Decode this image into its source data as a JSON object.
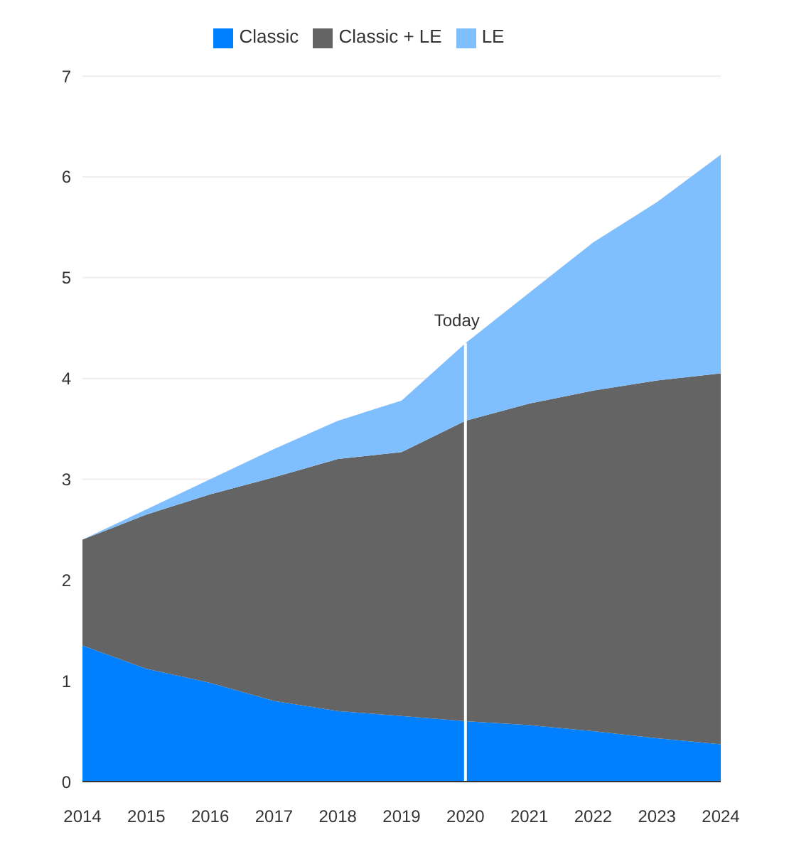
{
  "chart_data": {
    "type": "area",
    "stacked": true,
    "categories": [
      "2014",
      "2015",
      "2016",
      "2017",
      "2018",
      "2019",
      "2020",
      "2021",
      "2022",
      "2023",
      "2024"
    ],
    "series": [
      {
        "name": "Classic",
        "color": "#0080ff",
        "values": [
          1.35,
          1.12,
          0.98,
          0.8,
          0.7,
          0.65,
          0.6,
          0.56,
          0.5,
          0.43,
          0.37
        ]
      },
      {
        "name": "Classic + LE",
        "color": "#646464",
        "values": [
          1.05,
          1.53,
          1.87,
          2.22,
          2.5,
          2.62,
          2.98,
          3.19,
          3.38,
          3.55,
          3.68
        ]
      },
      {
        "name": "LE",
        "color": "#80bfff",
        "values": [
          0,
          0.05,
          0.15,
          0.28,
          0.38,
          0.51,
          0.77,
          1.1,
          1.47,
          1.77,
          2.17
        ]
      }
    ],
    "ylim": [
      0,
      7
    ],
    "yticks": [
      0,
      1,
      2,
      3,
      4,
      5,
      6,
      7
    ],
    "grid": "y",
    "legend": "top",
    "ref_lines": [
      {
        "axis": "x",
        "value": "2020",
        "label": "Today",
        "color": "#ffffff"
      }
    ]
  }
}
